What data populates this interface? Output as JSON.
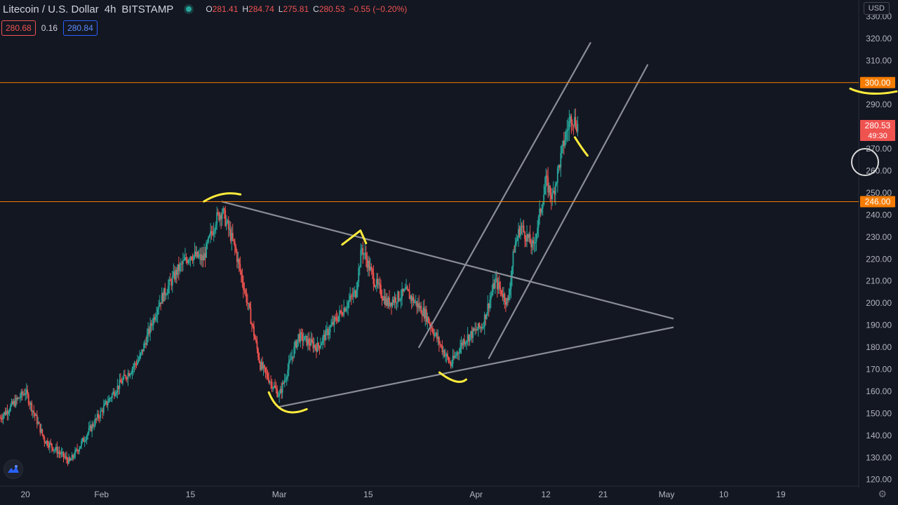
{
  "header": {
    "symbol": "Litecoin / U.S. Dollar",
    "interval": "4h",
    "exchange": "BITSTAMP",
    "ohlc": [
      {
        "k": "O",
        "v": "281.41"
      },
      {
        "k": "H",
        "v": "284.74"
      },
      {
        "k": "L",
        "v": "275.81"
      },
      {
        "k": "C",
        "v": "280.53"
      },
      {
        "k": "",
        "v": "−0.55 (−0.20%)"
      }
    ]
  },
  "quote": {
    "bid": "280.68",
    "spread": "0.16",
    "ask": "280.84"
  },
  "currency_button": "USD",
  "colors": {
    "up": "#26a69a",
    "down": "#ef5350",
    "level": "#f57c00",
    "trend": "#8a8d96",
    "annotation": "#ffeb3b"
  },
  "chart_data": {
    "type": "candlestick",
    "y_range": [
      118,
      333
    ],
    "y_ticks": [
      120,
      130,
      140,
      150,
      160,
      170,
      180,
      190,
      200,
      210,
      220,
      230,
      240,
      250,
      260,
      270,
      280,
      290,
      300,
      310,
      320,
      330
    ],
    "x_range": [
      "2021-01-16",
      "2021-05-19"
    ],
    "x_ticks": [
      {
        "date": "2021-01-20",
        "label": "20"
      },
      {
        "date": "2021-02-01",
        "label": "Feb"
      },
      {
        "date": "2021-02-15",
        "label": "15"
      },
      {
        "date": "2021-03-01",
        "label": "Mar"
      },
      {
        "date": "2021-03-15",
        "label": "15"
      },
      {
        "date": "2021-04-01",
        "label": "Apr"
      },
      {
        "date": "2021-04-12",
        "label": "12"
      },
      {
        "date": "2021-04-21",
        "label": "21"
      },
      {
        "date": "2021-05-01",
        "label": "May"
      },
      {
        "date": "2021-05-10",
        "label": "10"
      },
      {
        "date": "2021-05-19",
        "label": "19"
      }
    ],
    "price_path": [
      [
        "2021-01-16",
        148
      ],
      [
        "2021-01-20",
        160
      ],
      [
        "2021-01-23",
        138
      ],
      [
        "2021-01-27",
        128
      ],
      [
        "2021-01-30",
        142
      ],
      [
        "2021-02-03",
        160
      ],
      [
        "2021-02-07",
        175
      ],
      [
        "2021-02-10",
        200
      ],
      [
        "2021-02-13",
        215
      ],
      [
        "2021-02-15",
        222
      ],
      [
        "2021-02-17",
        220
      ],
      [
        "2021-02-19",
        238
      ],
      [
        "2021-02-20",
        242
      ],
      [
        "2021-02-22",
        225
      ],
      [
        "2021-02-24",
        200
      ],
      [
        "2021-02-26",
        172
      ],
      [
        "2021-03-01",
        158
      ],
      [
        "2021-03-04",
        185
      ],
      [
        "2021-03-07",
        180
      ],
      [
        "2021-03-10",
        193
      ],
      [
        "2021-03-13",
        205
      ],
      [
        "2021-03-14",
        225
      ],
      [
        "2021-03-16",
        210
      ],
      [
        "2021-03-18",
        200
      ],
      [
        "2021-03-21",
        205
      ],
      [
        "2021-03-24",
        195
      ],
      [
        "2021-03-26",
        183
      ],
      [
        "2021-03-28",
        172
      ],
      [
        "2021-03-30",
        183
      ],
      [
        "2021-04-02",
        190
      ],
      [
        "2021-04-04",
        210
      ],
      [
        "2021-04-06",
        200
      ],
      [
        "2021-04-07",
        225
      ],
      [
        "2021-04-08",
        235
      ],
      [
        "2021-04-10",
        225
      ],
      [
        "2021-04-12",
        255
      ],
      [
        "2021-04-13",
        248
      ],
      [
        "2021-04-15",
        275
      ],
      [
        "2021-04-16",
        285
      ],
      [
        "2021-04-17",
        280.53
      ]
    ],
    "levels": [
      {
        "price": 300,
        "label": "300.00"
      },
      {
        "price": 246,
        "label": "246.00"
      }
    ],
    "last_price": {
      "price": 280.53,
      "label": "280.53",
      "countdown": "49:30"
    },
    "trendlines": [
      {
        "from": [
          "2021-02-20",
          246
        ],
        "to": [
          "2021-05-02",
          193
        ]
      },
      {
        "from": [
          "2021-03-01",
          153
        ],
        "to": [
          "2021-05-02",
          189
        ]
      },
      {
        "from": [
          "2021-03-23",
          180
        ],
        "to": [
          "2021-04-19",
          318
        ]
      },
      {
        "from": [
          "2021-04-03",
          175
        ],
        "to": [
          "2021-04-28",
          308
        ]
      }
    ],
    "annotations": [
      {
        "type": "arc",
        "at": [
          "2021-02-20",
          248
        ]
      },
      {
        "type": "arc",
        "at": [
          "2021-03-14",
          231
        ]
      },
      {
        "type": "arc",
        "at": [
          "2021-03-02",
          150
        ]
      },
      {
        "type": "arc",
        "at": [
          "2021-03-28",
          166
        ]
      },
      {
        "type": "arc",
        "at": [
          "2021-04-17",
          272
        ]
      },
      {
        "type": "arc",
        "at": [
          "2021-05-19",
          296
        ]
      }
    ]
  }
}
